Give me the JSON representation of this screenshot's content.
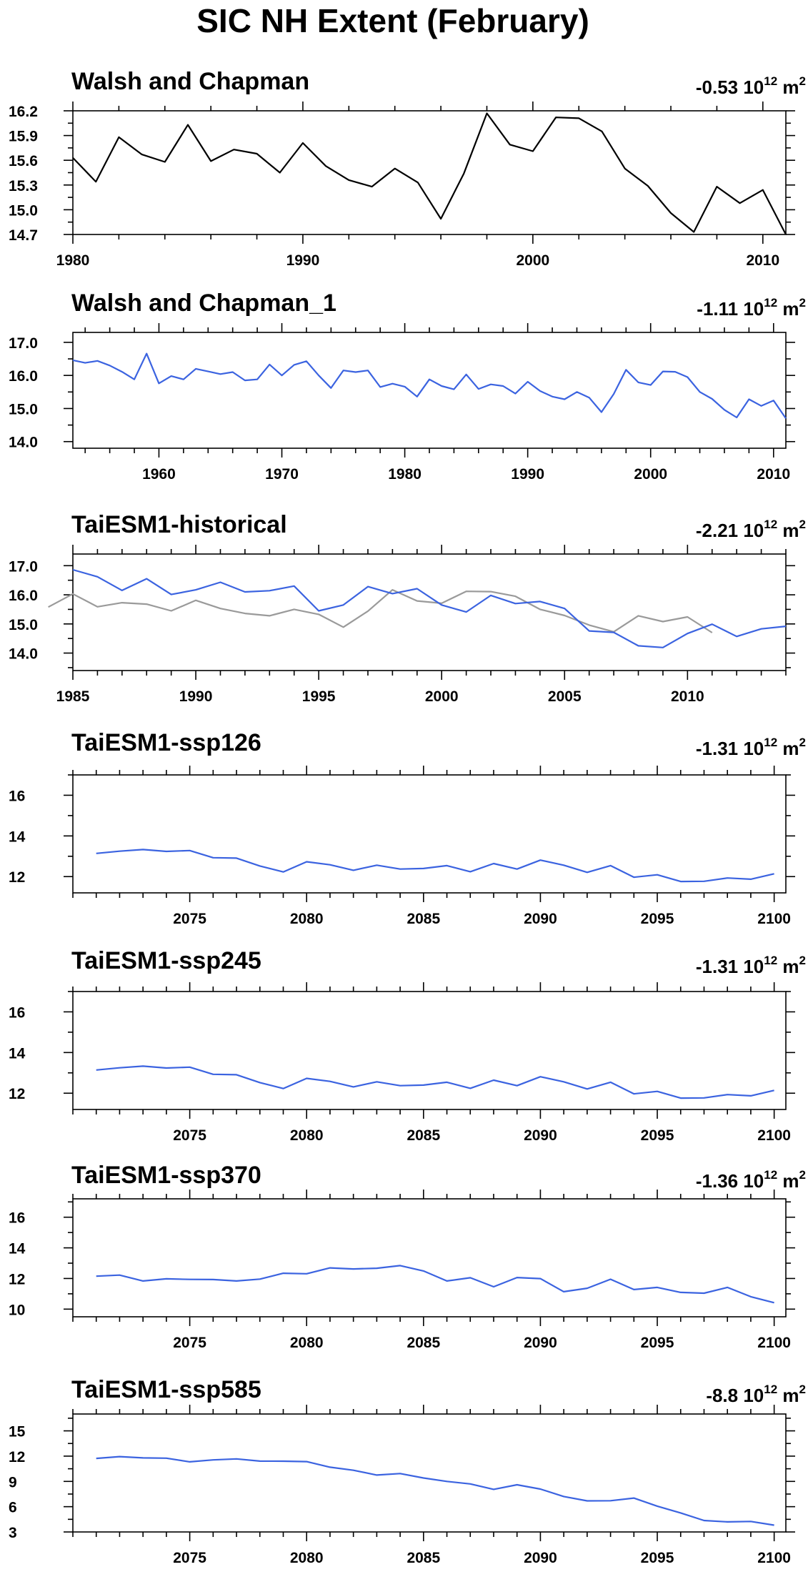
{
  "title": "SIC NH Extent (February)",
  "unit": "10",
  "unit_exp": "12",
  "unit_tail": " m",
  "unit_tail_exp": "2",
  "chart_data": [
    {
      "type": "line",
      "title": "Walsh and Chapman",
      "trend": "-0.53",
      "xlim": [
        1980,
        2011
      ],
      "ylim": [
        14.7,
        16.2
      ],
      "xticks": [
        1980,
        1990,
        2000,
        2010
      ],
      "yticks": [
        14.7,
        15.0,
        15.3,
        15.6,
        15.9,
        16.2
      ],
      "ytick_labels": [
        "14.7",
        "15.0",
        "15.3",
        "15.6",
        "15.9",
        "16.2"
      ],
      "series": [
        {
          "color": "#000000",
          "x_start": 1980,
          "values": [
            15.63,
            15.34,
            15.88,
            15.67,
            15.58,
            16.03,
            15.59,
            15.73,
            15.68,
            15.45,
            15.81,
            15.53,
            15.36,
            15.28,
            15.5,
            15.33,
            14.89,
            15.44,
            16.17,
            15.79,
            15.71,
            16.12,
            16.11,
            15.95,
            15.5,
            15.29,
            14.96,
            14.73,
            15.28,
            15.08,
            15.24,
            14.7
          ]
        }
      ]
    },
    {
      "type": "line",
      "title": "Walsh and Chapman_1",
      "trend": "-1.11",
      "xlim": [
        1953,
        2011
      ],
      "ylim": [
        13.8,
        17.3
      ],
      "xticks": [
        1960,
        1970,
        1980,
        1990,
        2000,
        2010
      ],
      "yticks": [
        14,
        15,
        16,
        17
      ],
      "ytick_labels": [
        "14.0",
        "15.0",
        "16.0",
        "17.0"
      ],
      "series": [
        {
          "color": "#3b63e0",
          "x_start": 1953,
          "values": [
            16.46,
            16.38,
            16.44,
            16.3,
            16.11,
            15.88,
            16.66,
            15.76,
            15.98,
            15.88,
            16.2,
            16.12,
            16.04,
            16.1,
            15.85,
            15.88,
            16.33,
            16.0,
            16.32,
            16.43,
            16.0,
            15.62,
            16.15,
            16.1,
            16.15,
            15.65,
            15.75,
            15.66,
            15.36,
            15.88,
            15.68,
            15.58,
            16.03,
            15.59,
            15.73,
            15.68,
            15.45,
            15.81,
            15.53,
            15.36,
            15.28,
            15.5,
            15.33,
            14.89,
            15.44,
            16.17,
            15.79,
            15.71,
            16.12,
            16.11,
            15.95,
            15.5,
            15.29,
            14.96,
            14.73,
            15.28,
            15.08,
            15.24,
            14.7
          ]
        }
      ]
    },
    {
      "type": "line",
      "title": "TaiESM1-historical",
      "trend": "-2.21",
      "xlim": [
        1985,
        2014
      ],
      "ylim": [
        13.4,
        17.4
      ],
      "xticks": [
        1985,
        1990,
        1995,
        2000,
        2005,
        2010
      ],
      "yticks": [
        14,
        15,
        16,
        17
      ],
      "ytick_labels": [
        "14.0",
        "15.0",
        "16.0",
        "17.0"
      ],
      "series": [
        {
          "color": "#3b63e0",
          "x_start": 1985,
          "values": [
            16.86,
            16.62,
            16.15,
            16.55,
            16.01,
            16.17,
            16.43,
            16.1,
            16.14,
            16.3,
            15.45,
            15.65,
            16.28,
            16.04,
            16.21,
            15.65,
            15.41,
            15.98,
            15.7,
            15.77,
            15.53,
            14.76,
            14.71,
            14.25,
            14.19,
            14.67,
            14.99,
            14.57,
            14.83,
            14.92
          ]
        },
        {
          "color": "#9a9a9a",
          "x_start": 1984,
          "values": [
            15.58,
            16.03,
            15.59,
            15.73,
            15.68,
            15.45,
            15.81,
            15.53,
            15.36,
            15.28,
            15.5,
            15.33,
            14.89,
            15.44,
            16.17,
            15.79,
            15.71,
            16.12,
            16.11,
            15.95,
            15.5,
            15.29,
            14.96,
            14.73,
            15.28,
            15.08,
            15.24,
            14.7
          ]
        }
      ]
    },
    {
      "type": "line",
      "title": "TaiESM1-ssp126",
      "trend": "-1.31",
      "xlim": [
        2070,
        2100.5
      ],
      "ylim": [
        11.2,
        17.0
      ],
      "xticks": [
        2075,
        2080,
        2085,
        2090,
        2095,
        2100
      ],
      "yticks": [
        12,
        14,
        16
      ],
      "ytick_labels": [
        "12",
        "14",
        "16"
      ],
      "series": [
        {
          "color": "#3b63e0",
          "x_start": 2071,
          "values": [
            13.14,
            13.25,
            13.33,
            13.24,
            13.28,
            12.93,
            12.91,
            12.52,
            12.23,
            12.73,
            12.58,
            12.31,
            12.56,
            12.37,
            12.4,
            12.54,
            12.24,
            12.64,
            12.37,
            12.81,
            12.56,
            12.21,
            12.54,
            11.97,
            12.09,
            11.76,
            11.77,
            11.93,
            11.87,
            12.14
          ]
        }
      ]
    },
    {
      "type": "line",
      "title": "TaiESM1-ssp245",
      "trend": "-1.31",
      "xlim": [
        2070,
        2100.5
      ],
      "ylim": [
        11.2,
        17.0
      ],
      "xticks": [
        2075,
        2080,
        2085,
        2090,
        2095,
        2100
      ],
      "yticks": [
        12,
        14,
        16
      ],
      "ytick_labels": [
        "12",
        "14",
        "16"
      ],
      "series": [
        {
          "color": "#3b63e0",
          "x_start": 2071,
          "values": [
            13.14,
            13.25,
            13.33,
            13.24,
            13.28,
            12.93,
            12.91,
            12.52,
            12.23,
            12.73,
            12.58,
            12.31,
            12.56,
            12.37,
            12.4,
            12.54,
            12.24,
            12.64,
            12.37,
            12.81,
            12.56,
            12.21,
            12.54,
            11.97,
            12.09,
            11.76,
            11.77,
            11.93,
            11.87,
            12.14
          ]
        }
      ]
    },
    {
      "type": "line",
      "title": "TaiESM1-ssp370",
      "trend": "-1.36",
      "xlim": [
        2070,
        2100.5
      ],
      "ylim": [
        9.5,
        17.2
      ],
      "xticks": [
        2075,
        2080,
        2085,
        2090,
        2095,
        2100
      ],
      "yticks": [
        10,
        12,
        14,
        16
      ],
      "ytick_labels": [
        "10",
        "12",
        "14",
        "16"
      ],
      "series": [
        {
          "color": "#3b63e0",
          "x_start": 2071,
          "values": [
            12.15,
            12.22,
            11.84,
            11.98,
            11.94,
            11.93,
            11.84,
            11.96,
            12.34,
            12.31,
            12.69,
            12.62,
            12.67,
            12.84,
            12.49,
            11.84,
            12.05,
            11.46,
            12.06,
            11.99,
            11.14,
            11.36,
            11.95,
            11.28,
            11.42,
            11.09,
            11.04,
            11.42,
            10.81,
            10.42
          ]
        }
      ]
    },
    {
      "type": "line",
      "title": "TaiESM1-ssp585",
      "trend": "-8.8",
      "xlim": [
        2070,
        2100.5
      ],
      "ylim": [
        3,
        17
      ],
      "xticks": [
        2075,
        2080,
        2085,
        2090,
        2095,
        2100
      ],
      "yticks": [
        3,
        6,
        9,
        12,
        15
      ],
      "ytick_labels": [
        "3",
        "6",
        "9",
        "12",
        "15"
      ],
      "series": [
        {
          "color": "#3b63e0",
          "x_start": 2071,
          "values": [
            11.73,
            11.94,
            11.79,
            11.76,
            11.32,
            11.55,
            11.67,
            11.41,
            11.4,
            11.35,
            10.69,
            10.32,
            9.75,
            9.93,
            9.41,
            9.0,
            8.7,
            8.06,
            8.6,
            8.09,
            7.21,
            6.69,
            6.71,
            7.02,
            6.06,
            5.26,
            4.36,
            4.2,
            4.25,
            3.81
          ]
        }
      ]
    }
  ]
}
